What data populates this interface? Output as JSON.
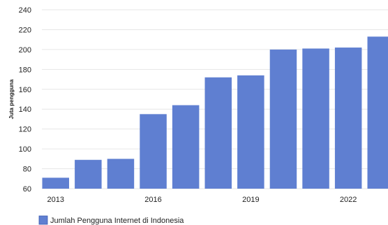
{
  "chart_data": {
    "type": "bar",
    "ylabel": "Juta pengguna",
    "legend_position": "bottom-left",
    "grid": true,
    "ylim": [
      60,
      240
    ],
    "yticks": [
      60,
      80,
      100,
      120,
      140,
      160,
      180,
      200,
      220,
      240
    ],
    "x": [
      2013,
      2014,
      2015,
      2016,
      2017,
      2018,
      2019,
      2020,
      2021,
      2022,
      2023
    ],
    "x_tick_labels": [
      "2013",
      "2016",
      "2019",
      "2022"
    ],
    "series": [
      {
        "name": "Jumlah Pengguna Internet di Indonesia",
        "color": "#5f7fd1",
        "values": [
          71,
          89,
          90,
          135,
          144,
          172,
          174,
          200,
          201,
          202,
          213
        ]
      }
    ]
  }
}
